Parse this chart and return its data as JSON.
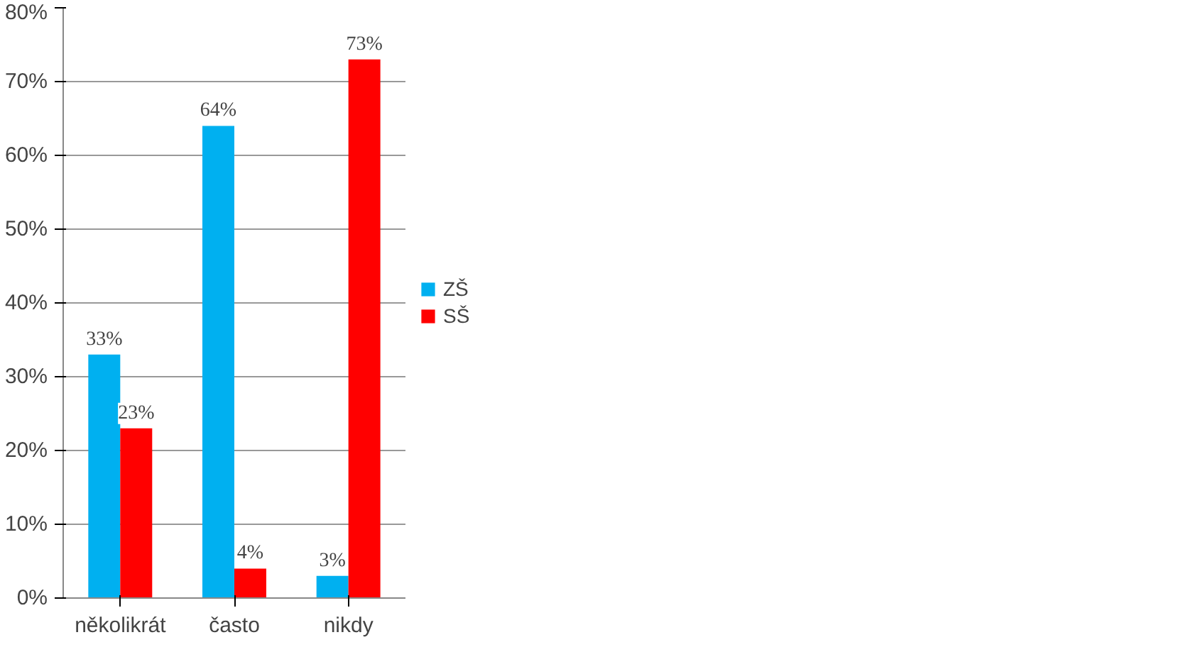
{
  "chart_data": {
    "type": "bar",
    "categories": [
      "několikrát",
      "často",
      "nikdy"
    ],
    "series": [
      {
        "name": "ZŠ",
        "color": "#00b0f0",
        "values": [
          33,
          64,
          3
        ],
        "value_labels": [
          "33%",
          "64%",
          "3%"
        ]
      },
      {
        "name": "SŠ",
        "color": "#ff0000",
        "values": [
          23,
          4,
          73
        ],
        "value_labels": [
          "23%",
          "4%",
          "73%"
        ]
      }
    ],
    "ylim": [
      0,
      80
    ],
    "yticks": [
      {
        "value": 0,
        "label": "0%"
      },
      {
        "value": 10,
        "label": "10%"
      },
      {
        "value": 20,
        "label": "20%"
      },
      {
        "value": 30,
        "label": "30%"
      },
      {
        "value": 40,
        "label": "40%"
      },
      {
        "value": 50,
        "label": "50%"
      },
      {
        "value": 60,
        "label": "60%"
      },
      {
        "value": 70,
        "label": "70%"
      },
      {
        "value": 80,
        "label": "80%"
      }
    ],
    "grid": "y",
    "legend": "right"
  }
}
